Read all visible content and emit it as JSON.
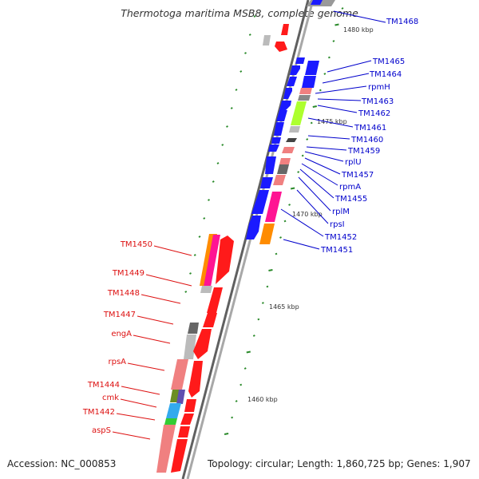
{
  "title": "Thermotoga maritima MSB8, complete genome",
  "footer": {
    "accession": "Accession: NC_000853",
    "topology": "Topology: circular; Length: 1,860,725 bp; Genes: 1,907"
  },
  "scale_labels": [
    "1480 kbp",
    "1475 kbp",
    "1470 kbp",
    "1465 kbp",
    "1460 kbp"
  ],
  "colors": {
    "forward_gene": "#1a1aff",
    "reverse_gene": "#ff1a1a",
    "right_label": "#0000cc",
    "left_label": "#dd1111",
    "backbone": "#808080",
    "tick": "#2a8a2a"
  },
  "right_genes": [
    "TM1468",
    "TM1465",
    "TM1464",
    "rpmH",
    "TM1463",
    "TM1462",
    "TM1461",
    "TM1460",
    "TM1459",
    "rplU",
    "TM1457",
    "rpmA",
    "TM1455",
    "rplM",
    "rpsI",
    "TM1452",
    "TM1451"
  ],
  "left_genes": [
    "TM1450",
    "TM1449",
    "TM1448",
    "TM1447",
    "engA",
    "rpsA",
    "TM1444",
    "cmk",
    "TM1442",
    "aspS"
  ]
}
